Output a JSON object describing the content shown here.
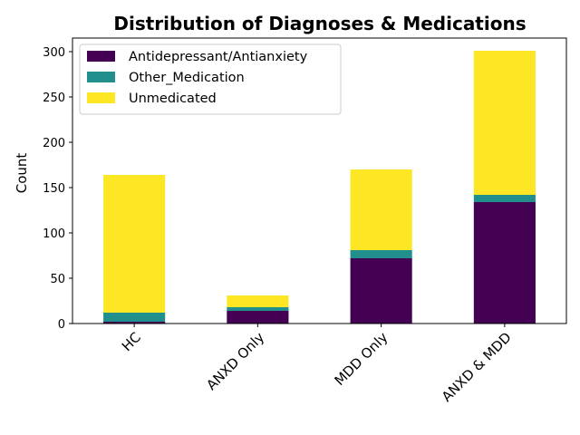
{
  "chart_data": {
    "type": "bar",
    "stacked": true,
    "title": "Distribution of Diagnoses & Medications",
    "xlabel": "",
    "ylabel": "Count",
    "categories": [
      "HC",
      "ANXD Only",
      "MDD Only",
      "ANXD & MDD"
    ],
    "series": [
      {
        "name": "Antidepressant/Antianxiety",
        "color": "#440154",
        "values": [
          2,
          14,
          72,
          134
        ]
      },
      {
        "name": "Other_Medication",
        "color": "#21908d",
        "values": [
          10,
          4,
          9,
          8
        ]
      },
      {
        "name": "Unmedicated",
        "color": "#fde725",
        "values": [
          152,
          13,
          89,
          159
        ]
      }
    ],
    "ylim": [
      0,
      315
    ],
    "yticks": [
      0,
      50,
      100,
      150,
      200,
      250,
      300
    ],
    "grid": false,
    "legend_position": "top-left"
  }
}
